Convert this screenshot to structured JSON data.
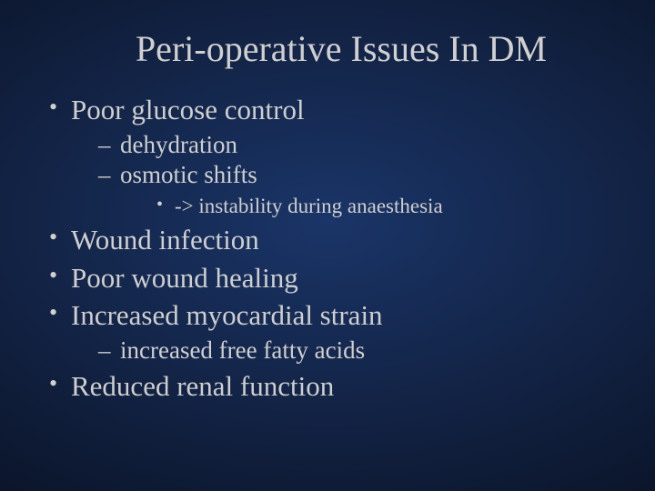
{
  "slide": {
    "type": "presentation-slide",
    "background": {
      "gradient_center": "#1a3568",
      "gradient_mid": "#122243",
      "gradient_outer": "#0a1428",
      "gradient_edge": "#05091a"
    },
    "text_color": "#cfcfcf",
    "font_family": "Georgia, Times New Roman, serif",
    "title": {
      "text": "Peri-operative Issues In DM",
      "fontsize": 40,
      "align": "center"
    },
    "bullets": {
      "lvl1_fontsize": 31,
      "lvl2_fontsize": 27,
      "lvl3_fontsize": 23,
      "lvl1_marker": "•",
      "lvl2_marker": "–",
      "lvl3_marker": "•"
    },
    "items": [
      {
        "text": "Poor glucose control",
        "children": [
          {
            "text": "dehydration"
          },
          {
            "text": "osmotic shifts",
            "children": [
              {
                "text": "-> instability during anaesthesia"
              }
            ]
          }
        ]
      },
      {
        "text": "Wound infection"
      },
      {
        "text": "Poor wound healing"
      },
      {
        "text": "Increased myocardial strain",
        "children": [
          {
            "text": "increased free fatty acids"
          }
        ]
      },
      {
        "text": "Reduced renal function"
      }
    ]
  }
}
